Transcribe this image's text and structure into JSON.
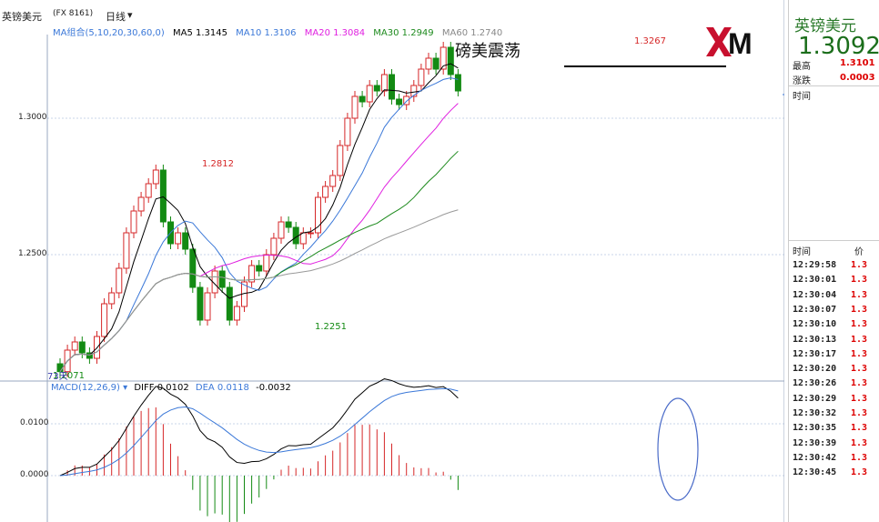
{
  "window": {
    "symbol_label": "英镑美元",
    "code_label": "(FX 8161)",
    "period_label": "日线"
  },
  "ma_bar": {
    "group_label": "MA组合(5,10,20,30,60,0)",
    "items": [
      {
        "label": "MA5 1.3145",
        "color": "#000000"
      },
      {
        "label": "MA10 1.3106",
        "color": "#3b78d8"
      },
      {
        "label": "MA20 1.3084",
        "color": "#e020e0"
      },
      {
        "label": "MA30 1.2949",
        "color": "#1d8a1d"
      },
      {
        "label": "MA60 1.2740",
        "color": "#888888"
      }
    ]
  },
  "annotation": {
    "headline": "磅美震荡",
    "high_label": "1.3267",
    "mid_high_label": "1.2812",
    "low_label": "1.2251",
    "start_low_label": "1.2071",
    "days_label": "73天"
  },
  "price_axis": {
    "labels": [
      "1.3000",
      "1.2500"
    ]
  },
  "macd_bar": {
    "label": "MACD(12,26,9)",
    "diff_label": "DIFF 0.0102",
    "dea_label": "DEA 0.0118",
    "macd_value": "-0.0032"
  },
  "macd_axis": {
    "labels": [
      "0.0100",
      "0.0000"
    ]
  },
  "logo_text": "XM",
  "quote": {
    "title": "英镑美元",
    "price": "1.3092",
    "high_label": "最高",
    "high_value": "1.3101",
    "change_label": "涨跌",
    "change_value": "0.0003",
    "time_header": "时间",
    "tick_header_time": "时间",
    "tick_header_price": "价",
    "ticks": [
      {
        "time": "12:29:58",
        "price": "1.3"
      },
      {
        "time": "12:30:01",
        "price": "1.3"
      },
      {
        "time": "12:30:04",
        "price": "1.3"
      },
      {
        "time": "12:30:07",
        "price": "1.3"
      },
      {
        "time": "12:30:10",
        "price": "1.3"
      },
      {
        "time": "12:30:13",
        "price": "1.3"
      },
      {
        "time": "12:30:17",
        "price": "1.3"
      },
      {
        "time": "12:30:20",
        "price": "1.3"
      },
      {
        "time": "12:30:26",
        "price": "1.3"
      },
      {
        "time": "12:30:29",
        "price": "1.3"
      },
      {
        "time": "12:30:32",
        "price": "1.3"
      },
      {
        "time": "12:30:35",
        "price": "1.3"
      },
      {
        "time": "12:30:39",
        "price": "1.3"
      },
      {
        "time": "12:30:42",
        "price": "1.3"
      },
      {
        "time": "12:30:45",
        "price": "1.3"
      }
    ]
  },
  "colors": {
    "up": "#d62728",
    "down": "#138a13",
    "grid": "#c9d6ea"
  }
}
